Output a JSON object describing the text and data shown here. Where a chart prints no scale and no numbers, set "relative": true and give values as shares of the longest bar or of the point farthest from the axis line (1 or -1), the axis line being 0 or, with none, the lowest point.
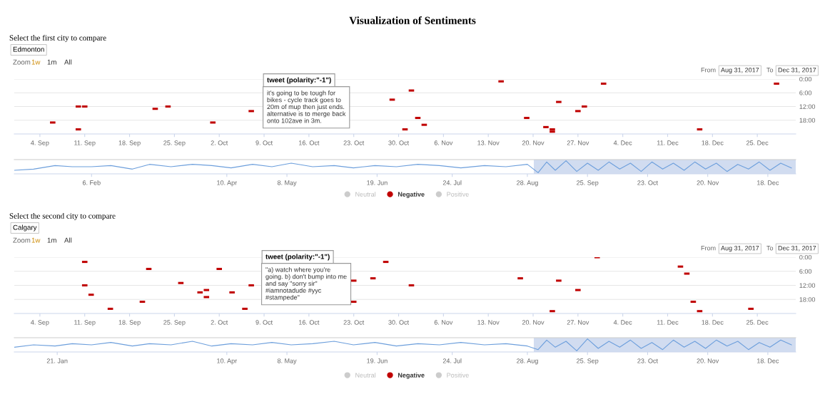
{
  "chart_data": [
    {
      "type": "scatter",
      "title": "Visualization of Sentiments",
      "xlim": [
        "2017-08-31",
        "2017-12-31"
      ],
      "ylim": [
        24,
        0
      ],
      "xticks": [
        {
          "value": "2017-09-04",
          "label": "4. Sep"
        },
        {
          "value": "2017-09-11",
          "label": "11. Sep"
        },
        {
          "value": "2017-09-18",
          "label": "18. Sep"
        },
        {
          "value": "2017-09-25",
          "label": "25. Sep"
        },
        {
          "value": "2017-10-02",
          "label": "2. Oct"
        },
        {
          "value": "2017-10-09",
          "label": "9. Oct"
        },
        {
          "value": "2017-10-16",
          "label": "16. Oct"
        },
        {
          "value": "2017-10-23",
          "label": "23. Oct"
        },
        {
          "value": "2017-10-30",
          "label": "30. Oct"
        },
        {
          "value": "2017-11-06",
          "label": "6. Nov"
        },
        {
          "value": "2017-11-13",
          "label": "13. Nov"
        },
        {
          "value": "2017-11-20",
          "label": "20. Nov"
        },
        {
          "value": "2017-11-27",
          "label": "27. Nov"
        },
        {
          "value": "2017-12-04",
          "label": "4. Dec"
        },
        {
          "value": "2017-12-11",
          "label": "11. Dec"
        },
        {
          "value": "2017-12-18",
          "label": "18. Dec"
        },
        {
          "value": "2017-12-25",
          "label": "25. Dec"
        }
      ],
      "yticks": [
        {
          "value": 0,
          "label": "0:00"
        },
        {
          "value": 6,
          "label": "6:00"
        },
        {
          "value": 12,
          "label": "12:00"
        },
        {
          "value": 18,
          "label": "18:00"
        }
      ],
      "grid": "y",
      "legend": "bottom",
      "marker": "square",
      "series": [
        {
          "name": "Neutral",
          "color": "#cccccc"
        },
        {
          "name": "Negative",
          "color": "#c00000",
          "x": [
            "2017-09-06",
            "2017-09-10",
            "2017-09-11",
            "2017-09-10",
            "2017-09-22",
            "2017-09-24",
            "2017-10-01",
            "2017-10-07",
            "2017-10-29",
            "2017-11-01",
            "2017-10-31",
            "2017-11-02",
            "2017-11-03",
            "2017-11-15",
            "2017-11-19",
            "2017-11-22",
            "2017-11-23",
            "2017-11-23",
            "2017-11-24",
            "2017-11-27",
            "2017-11-28",
            "2017-12-01",
            "2017-12-16",
            "2017-12-28"
          ],
          "values": [
            19,
            12,
            12,
            22,
            13,
            12,
            19,
            14,
            9,
            5,
            22,
            17,
            20,
            1,
            17,
            21,
            22,
            23,
            10,
            14,
            12,
            2,
            22,
            2
          ]
        },
        {
          "name": "Positive",
          "color": "#cccccc"
        }
      ],
      "annotations": [
        "Select the first city to compare",
        "Edmonton",
        "Zoom",
        "1w",
        "1m",
        "All",
        "From",
        "Aug 31, 2017",
        "To",
        "Dec 31, 2017",
        "tweet (polarity:\"-1\")",
        "it's going to be tough for\nbikes - cycle track goes to\n20m of mup then just ends.\nalternative is to merge back\nonto 102ave in 3m."
      ]
    },
    {
      "type": "line",
      "relative": true,
      "xlim": [
        "2017-01-01",
        "2017-12-31"
      ],
      "xticks": [
        {
          "value": "2017-02-06",
          "label": "6. Feb"
        },
        {
          "value": "2017-04-10",
          "label": "10. Apr"
        },
        {
          "value": "2017-05-08",
          "label": "8. May"
        },
        {
          "value": "2017-06-19",
          "label": "19. Jun"
        },
        {
          "value": "2017-07-24",
          "label": "24. Jul"
        },
        {
          "value": "2017-08-28",
          "label": "28. Aug"
        },
        {
          "value": "2017-09-25",
          "label": "25. Sep"
        },
        {
          "value": "2017-10-23",
          "label": "23. Oct"
        },
        {
          "value": "2017-11-20",
          "label": "20. Nov"
        },
        {
          "value": "2017-12-18",
          "label": "18. Dec"
        }
      ],
      "bands": [
        {
          "axis": "x",
          "from": "2017-08-31",
          "to": "2017-12-31",
          "color": "#c5d3ec"
        }
      ],
      "series": [
        {
          "color": "#6d9fdc",
          "x": [
            "2017-01-01",
            "2017-01-10",
            "2017-01-20",
            "2017-01-28",
            "2017-02-06",
            "2017-02-15",
            "2017-02-25",
            "2017-03-05",
            "2017-03-15",
            "2017-03-25",
            "2017-04-03",
            "2017-04-12",
            "2017-04-22",
            "2017-05-01",
            "2017-05-10",
            "2017-05-20",
            "2017-05-30",
            "2017-06-08",
            "2017-06-18",
            "2017-06-28",
            "2017-07-08",
            "2017-07-18",
            "2017-07-28",
            "2017-08-08",
            "2017-08-18",
            "2017-08-28",
            "2017-09-02",
            "2017-09-06",
            "2017-09-10",
            "2017-09-15",
            "2017-09-20",
            "2017-09-25",
            "2017-09-30",
            "2017-10-05",
            "2017-10-10",
            "2017-10-15",
            "2017-10-20",
            "2017-10-25",
            "2017-10-30",
            "2017-11-04",
            "2017-11-09",
            "2017-11-14",
            "2017-11-19",
            "2017-11-24",
            "2017-11-29",
            "2017-12-04",
            "2017-12-09",
            "2017-12-14",
            "2017-12-19",
            "2017-12-24",
            "2017-12-29"
          ],
          "values": [
            0.2,
            0.3,
            0.6,
            0.5,
            0.5,
            0.6,
            0.3,
            0.7,
            0.5,
            0.7,
            0.6,
            0.4,
            0.7,
            0.5,
            0.8,
            0.5,
            0.6,
            0.4,
            0.6,
            0.5,
            0.7,
            0.6,
            0.4,
            0.6,
            0.5,
            0.7,
            0.0,
            0.9,
            0.2,
            1.0,
            0.1,
            0.8,
            0.2,
            0.9,
            0.3,
            0.8,
            0.1,
            0.9,
            0.3,
            0.8,
            0.2,
            0.9,
            0.3,
            0.8,
            0.1,
            0.7,
            0.3,
            0.9,
            0.2,
            0.8,
            0.4
          ]
        }
      ]
    },
    {
      "type": "scatter",
      "xlim": [
        "2017-08-31",
        "2017-12-31"
      ],
      "ylim": [
        24,
        0
      ],
      "xticks": [
        {
          "value": "2017-09-04",
          "label": "4. Sep"
        },
        {
          "value": "2017-09-11",
          "label": "11. Sep"
        },
        {
          "value": "2017-09-18",
          "label": "18. Sep"
        },
        {
          "value": "2017-09-25",
          "label": "25. Sep"
        },
        {
          "value": "2017-10-02",
          "label": "2. Oct"
        },
        {
          "value": "2017-10-09",
          "label": "9. Oct"
        },
        {
          "value": "2017-10-16",
          "label": "16. Oct"
        },
        {
          "value": "2017-10-23",
          "label": "23. Oct"
        },
        {
          "value": "2017-10-30",
          "label": "30. Oct"
        },
        {
          "value": "2017-11-06",
          "label": "6. Nov"
        },
        {
          "value": "2017-11-13",
          "label": "13. Nov"
        },
        {
          "value": "2017-11-20",
          "label": "20. Nov"
        },
        {
          "value": "2017-11-27",
          "label": "27. Nov"
        },
        {
          "value": "2017-12-04",
          "label": "4. Dec"
        },
        {
          "value": "2017-12-11",
          "label": "11. Dec"
        },
        {
          "value": "2017-12-18",
          "label": "18. Dec"
        },
        {
          "value": "2017-12-25",
          "label": "25. Dec"
        }
      ],
      "yticks": [
        {
          "value": 0,
          "label": "0:00"
        },
        {
          "value": 6,
          "label": "6:00"
        },
        {
          "value": 12,
          "label": "12:00"
        },
        {
          "value": 18,
          "label": "18:00"
        }
      ],
      "grid": "y",
      "legend": "bottom",
      "marker": "square",
      "series": [
        {
          "name": "Neutral",
          "color": "#cccccc"
        },
        {
          "name": "Negative",
          "color": "#c00000",
          "x": [
            "2017-09-11",
            "2017-09-11",
            "2017-09-12",
            "2017-09-15",
            "2017-09-20",
            "2017-09-21",
            "2017-09-26",
            "2017-09-29",
            "2017-09-30",
            "2017-09-30",
            "2017-10-02",
            "2017-10-04",
            "2017-10-06",
            "2017-10-07",
            "2017-10-23",
            "2017-10-23",
            "2017-10-26",
            "2017-10-28",
            "2017-11-01",
            "2017-11-18",
            "2017-11-23",
            "2017-11-24",
            "2017-11-27",
            "2017-11-30",
            "2017-12-13",
            "2017-12-14",
            "2017-12-15",
            "2017-12-16",
            "2017-12-24"
          ],
          "values": [
            2,
            12,
            16,
            22,
            19,
            5,
            11,
            15,
            14,
            17,
            5,
            15,
            22,
            12,
            10,
            19,
            9,
            2,
            12,
            9,
            23,
            10,
            14,
            0,
            4,
            7,
            19,
            23,
            22
          ]
        },
        {
          "name": "Positive",
          "color": "#cccccc"
        }
      ],
      "annotations": [
        "Select the second city to compare",
        "Calgary",
        "Zoom",
        "1w",
        "1m",
        "All",
        "From",
        "Aug 31, 2017",
        "To",
        "Dec 31, 2017",
        "tweet (polarity:\"-1\")",
        "\"a) watch where you're\ngoing. b) don't bump into me\nand say \"sorry sir\"\n#iamnotadude #yyc\n#stampede\""
      ]
    },
    {
      "type": "line",
      "relative": true,
      "xlim": [
        "2017-01-01",
        "2017-12-31"
      ],
      "xticks": [
        {
          "value": "2017-01-21",
          "label": "21. Jan"
        },
        {
          "value": "2017-04-10",
          "label": "10. Apr"
        },
        {
          "value": "2017-05-08",
          "label": "8. May"
        },
        {
          "value": "2017-06-19",
          "label": "19. Jun"
        },
        {
          "value": "2017-07-24",
          "label": "24. Jul"
        },
        {
          "value": "2017-08-28",
          "label": "28. Aug"
        },
        {
          "value": "2017-09-25",
          "label": "25. Sep"
        },
        {
          "value": "2017-10-23",
          "label": "23. Oct"
        },
        {
          "value": "2017-11-20",
          "label": "20. Nov"
        },
        {
          "value": "2017-12-18",
          "label": "18. Dec"
        }
      ],
      "bands": [
        {
          "axis": "x",
          "from": "2017-08-31",
          "to": "2017-12-31",
          "color": "#c5d3ec"
        }
      ],
      "series": [
        {
          "color": "#6d9fdc",
          "x": [
            "2017-01-01",
            "2017-01-10",
            "2017-01-20",
            "2017-01-28",
            "2017-02-06",
            "2017-02-15",
            "2017-02-25",
            "2017-03-05",
            "2017-03-15",
            "2017-03-25",
            "2017-04-03",
            "2017-04-12",
            "2017-04-22",
            "2017-05-01",
            "2017-05-10",
            "2017-05-20",
            "2017-05-30",
            "2017-06-08",
            "2017-06-18",
            "2017-06-28",
            "2017-07-08",
            "2017-07-18",
            "2017-07-28",
            "2017-08-08",
            "2017-08-18",
            "2017-08-28",
            "2017-09-02",
            "2017-09-06",
            "2017-09-10",
            "2017-09-15",
            "2017-09-20",
            "2017-09-25",
            "2017-09-30",
            "2017-10-05",
            "2017-10-10",
            "2017-10-15",
            "2017-10-20",
            "2017-10-25",
            "2017-10-30",
            "2017-11-04",
            "2017-11-09",
            "2017-11-14",
            "2017-11-19",
            "2017-11-24",
            "2017-11-29",
            "2017-12-04",
            "2017-12-09",
            "2017-12-14",
            "2017-12-19",
            "2017-12-24",
            "2017-12-29"
          ],
          "values": [
            0.3,
            0.5,
            0.4,
            0.6,
            0.5,
            0.7,
            0.4,
            0.6,
            0.5,
            0.8,
            0.4,
            0.6,
            0.5,
            0.7,
            0.5,
            0.6,
            0.8,
            0.5,
            0.7,
            0.4,
            0.6,
            0.5,
            0.7,
            0.5,
            0.6,
            0.4,
            0.1,
            0.9,
            0.3,
            0.8,
            0.0,
            1.0,
            0.2,
            0.8,
            0.3,
            0.9,
            0.2,
            0.7,
            0.1,
            0.9,
            0.3,
            0.8,
            0.2,
            0.9,
            0.4,
            0.8,
            0.1,
            0.7,
            0.3,
            0.9,
            0.5
          ]
        }
      ]
    }
  ]
}
